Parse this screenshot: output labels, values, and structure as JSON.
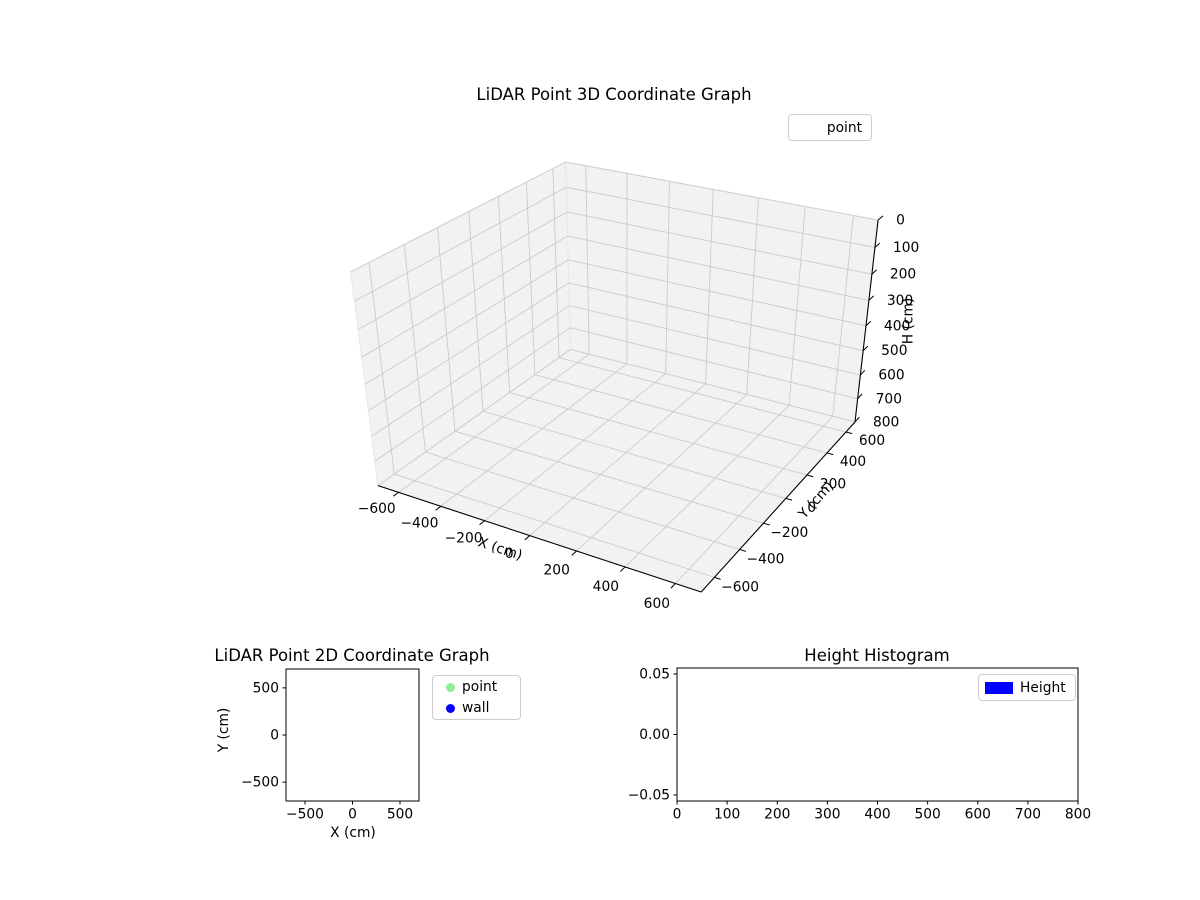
{
  "figure": {
    "background": "#ffffff"
  },
  "colors": {
    "pane": "#f2f2f2",
    "pane_edge": "#e7e7e7",
    "grid": "#cbcbcb",
    "spine": "#000000",
    "tick_label": "#000000",
    "legend_border": "#cccccc",
    "point": "#90ee90",
    "wall": "#0000ff",
    "height_bar": "#0000ff"
  },
  "chart_data": [
    {
      "type": "scatter3d",
      "title": "LiDAR Point 3D Coordinate Graph",
      "xlabel": "X (cm)",
      "ylabel": "Y (cm)",
      "zlabel": "H (cm)",
      "xlim": [
        -700,
        700
      ],
      "ylim": [
        -700,
        700
      ],
      "zlim": [
        0,
        800
      ],
      "z_axis_inverted": true,
      "xticks": [
        -600,
        -400,
        -200,
        0,
        200,
        400,
        600
      ],
      "yticks": [
        -600,
        -400,
        -200,
        0,
        200,
        400,
        600
      ],
      "zticks": [
        0,
        100,
        200,
        300,
        400,
        500,
        600,
        700,
        800
      ],
      "view": {
        "elev": 30,
        "azim": -60
      },
      "grid": true,
      "legend": [
        {
          "label": "point"
        }
      ],
      "legend_position": "upper right outside",
      "series": [
        {
          "name": "point",
          "points": []
        }
      ]
    },
    {
      "type": "scatter",
      "title": "LiDAR Point 2D Coordinate Graph",
      "xlabel": "X (cm)",
      "ylabel": "Y (cm)",
      "xlim": [
        -700,
        700
      ],
      "ylim": [
        -700,
        700
      ],
      "xticks": [
        -500,
        0,
        500
      ],
      "yticks": [
        500,
        0,
        -500
      ],
      "grid": false,
      "legend": [
        {
          "label": "point",
          "color": "#90ee90",
          "marker": "circle"
        },
        {
          "label": "wall",
          "color": "#0000ff",
          "marker": "circle"
        }
      ],
      "legend_position": "right outside",
      "series": [
        {
          "name": "point",
          "points": []
        },
        {
          "name": "wall",
          "points": []
        }
      ]
    },
    {
      "type": "histogram",
      "title": "Height Histogram",
      "xlabel": "",
      "ylabel": "",
      "xlim": [
        0,
        800
      ],
      "ylim": [
        -0.055,
        0.055
      ],
      "xticks": [
        0,
        100,
        200,
        300,
        400,
        500,
        600,
        700,
        800
      ],
      "yticks": [
        0.05,
        0,
        -0.05
      ],
      "ytick_labels": [
        "0.05",
        "0.00",
        "−0.05"
      ],
      "grid": false,
      "legend": [
        {
          "label": "Height",
          "color": "#0000ff",
          "marker": "rect"
        }
      ],
      "legend_position": "upper right",
      "series": [
        {
          "name": "Height",
          "values": []
        }
      ]
    }
  ]
}
